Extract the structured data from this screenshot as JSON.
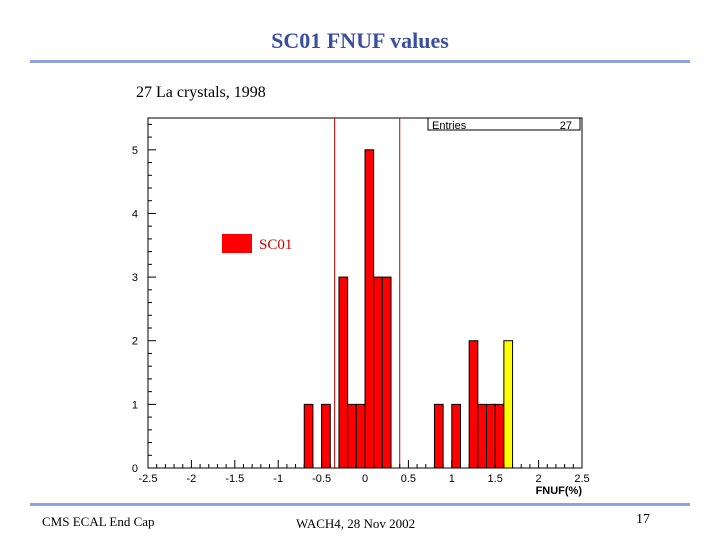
{
  "slide": {
    "title": "SC01 FNUF values",
    "subtitle": "27 La crystals, 1998"
  },
  "footer": {
    "left": "CMS ECAL End Cap",
    "center": "WACH4, 28 Nov 2002",
    "page_number": "17"
  },
  "colors": {
    "title": "#3a4fa0",
    "rule": "#8ea4d8",
    "bars": "#ff0000",
    "highlight_bar": "#ffff00",
    "cut_lines": "#c00000"
  },
  "chart_data": {
    "type": "bar",
    "xlabel": "FNUF(%)",
    "ylabel": "",
    "xlim": [
      -2.5,
      2.5
    ],
    "ylim": [
      0,
      5.5
    ],
    "x_ticks": [
      "-2.5",
      "-2",
      "-1.5",
      "-1",
      "-0.5",
      "0",
      "0.5",
      "1",
      "1.5",
      "2",
      "2.5"
    ],
    "y_ticks": [
      "0",
      "1",
      "2",
      "3",
      "4",
      "5"
    ],
    "bin_width": 0.1,
    "bins": [
      {
        "x0": -0.7,
        "x1": -0.6,
        "value": 1
      },
      {
        "x0": -0.5,
        "x1": -0.4,
        "value": 1
      },
      {
        "x0": -0.3,
        "x1": -0.2,
        "value": 3
      },
      {
        "x0": -0.2,
        "x1": -0.1,
        "value": 1
      },
      {
        "x0": -0.1,
        "x1": 0.0,
        "value": 1
      },
      {
        "x0": 0.0,
        "x1": 0.1,
        "value": 5
      },
      {
        "x0": 0.1,
        "x1": 0.2,
        "value": 3
      },
      {
        "x0": 0.2,
        "x1": 0.3,
        "value": 3
      },
      {
        "x0": 0.8,
        "x1": 0.9,
        "value": 1
      },
      {
        "x0": 1.0,
        "x1": 1.1,
        "value": 1
      },
      {
        "x0": 1.2,
        "x1": 1.3,
        "value": 2
      },
      {
        "x0": 1.3,
        "x1": 1.4,
        "value": 1
      },
      {
        "x0": 1.4,
        "x1": 1.5,
        "value": 1
      },
      {
        "x0": 1.5,
        "x1": 1.6,
        "value": 1
      },
      {
        "x0": 1.6,
        "x1": 1.7,
        "value": 2,
        "highlight": true
      }
    ],
    "vertical_lines": [
      -0.35,
      0.4
    ],
    "stats_box": {
      "label": "Entries",
      "value": "27"
    },
    "legend": {
      "label": "SC01",
      "position": "left"
    }
  }
}
